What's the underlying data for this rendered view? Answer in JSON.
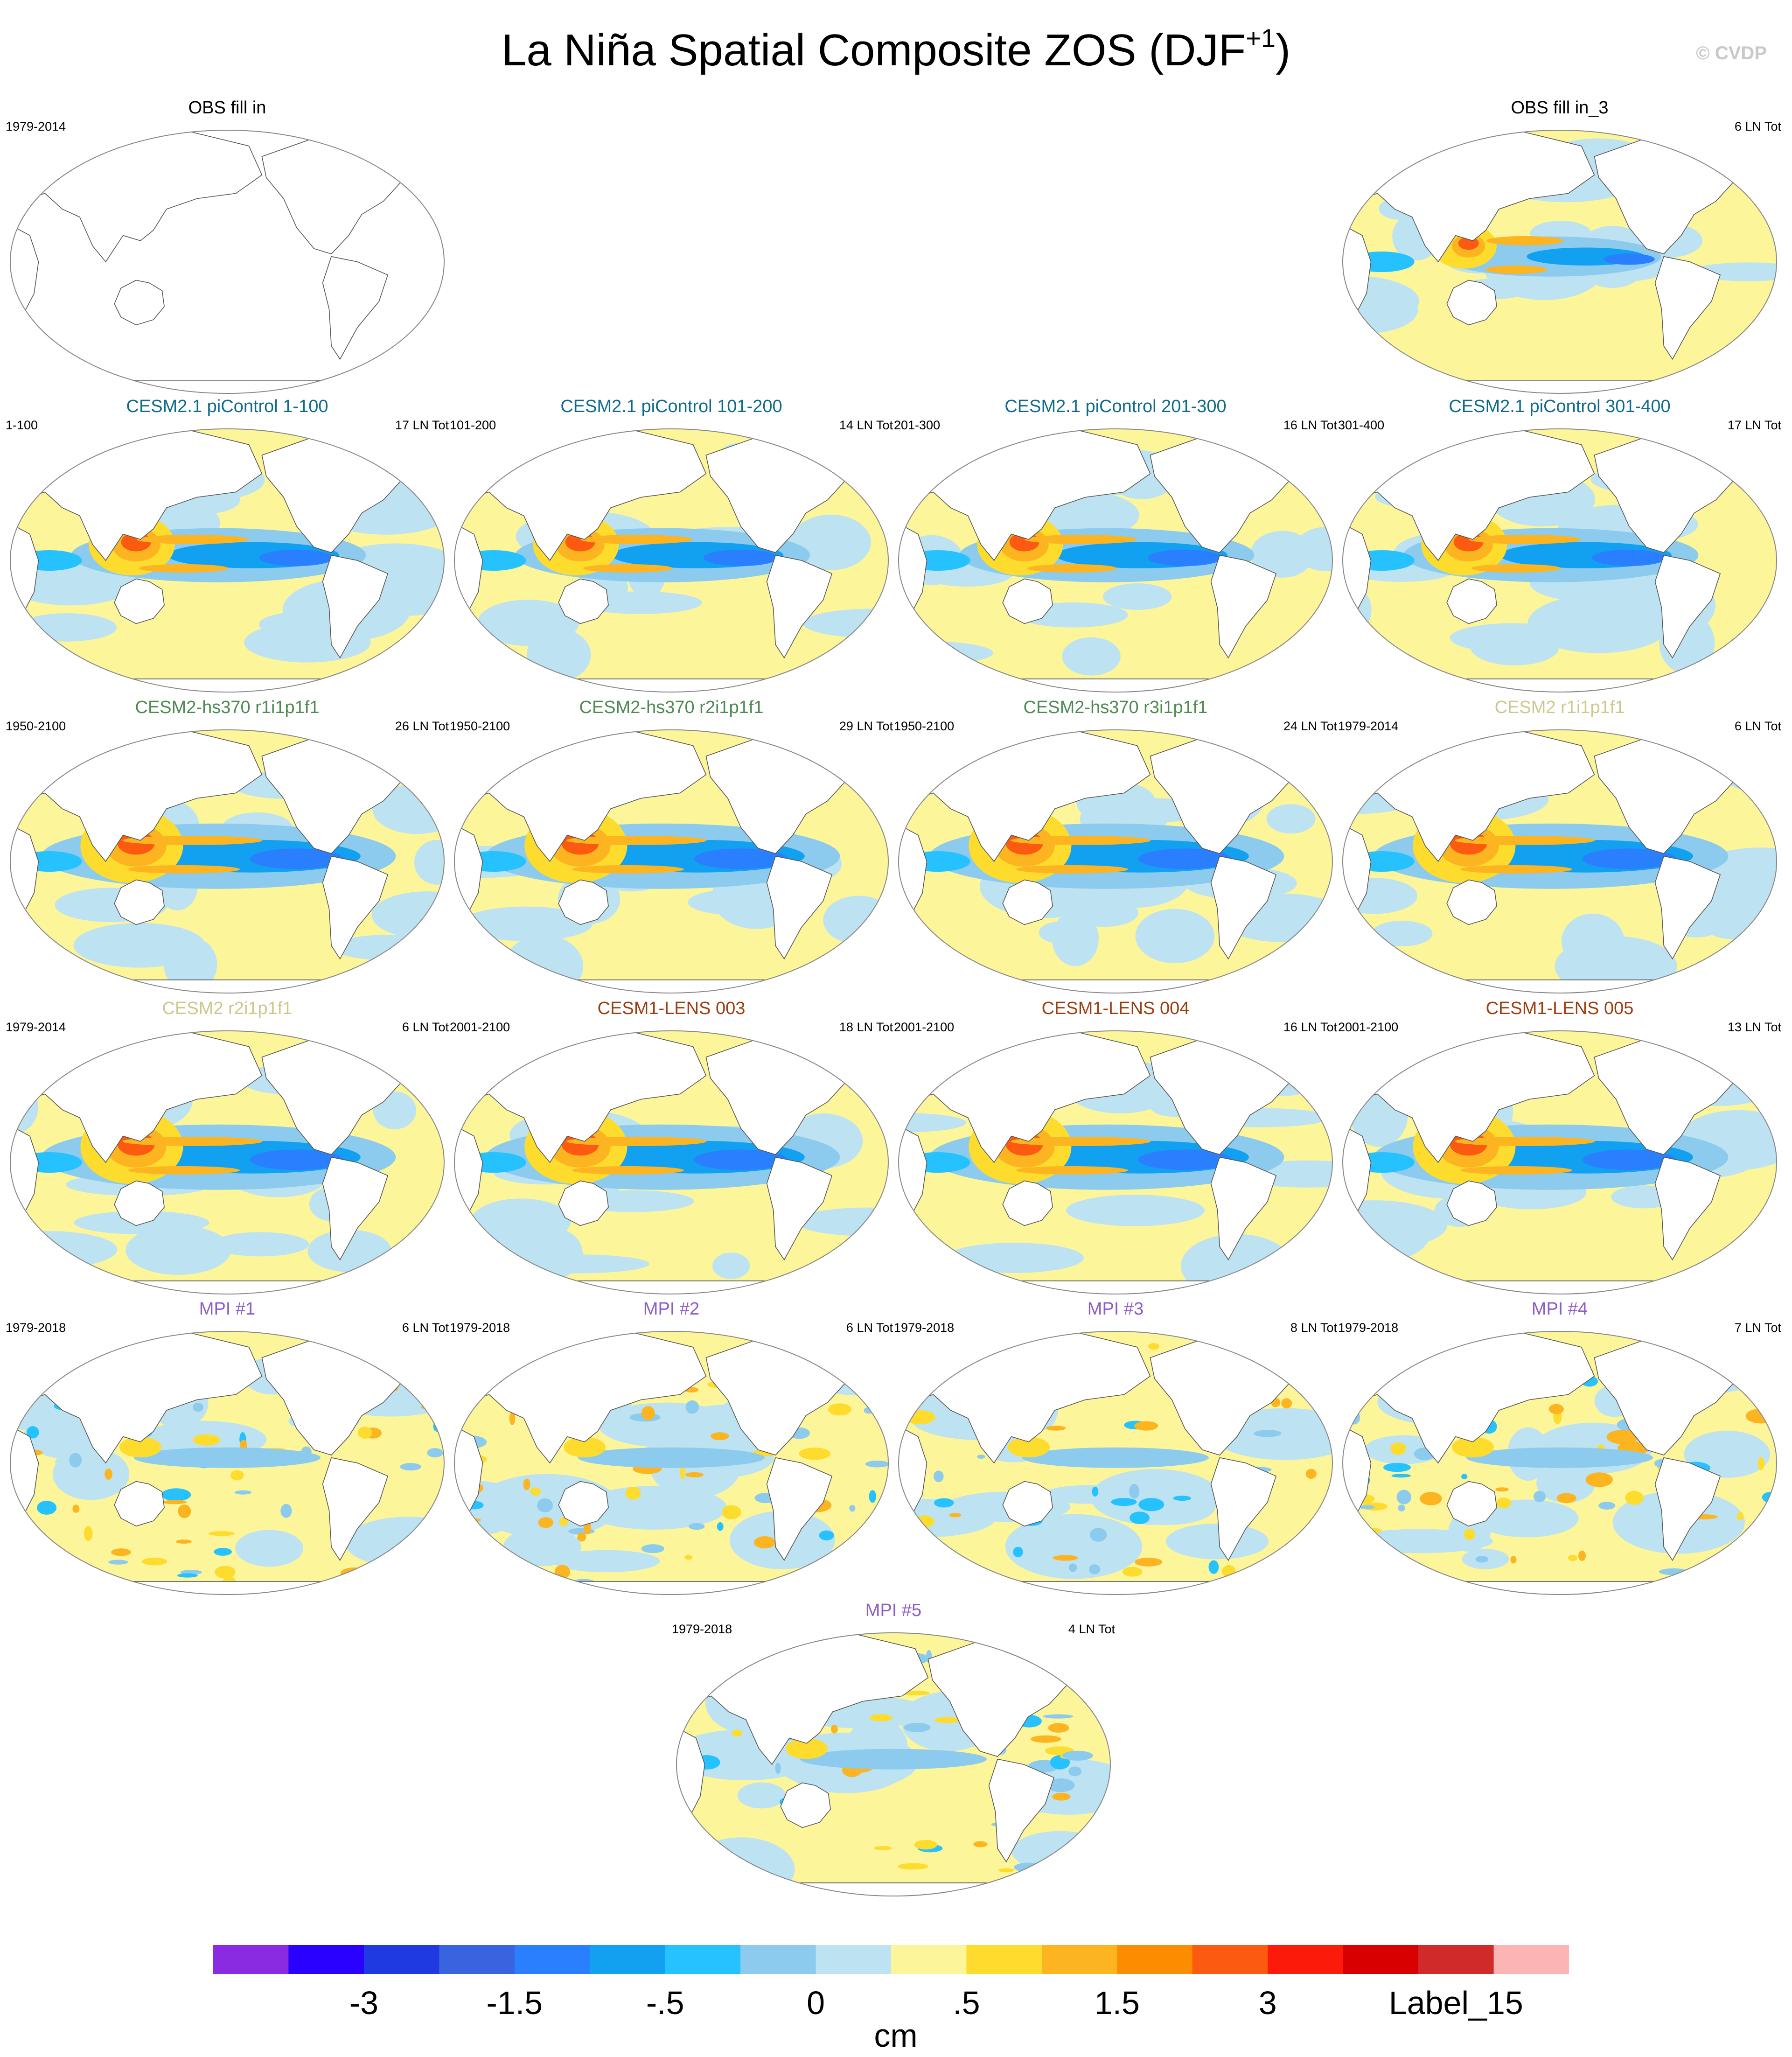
{
  "figure": {
    "title_main": "La Niña Spatial Composite ZOS (DJF",
    "title_sup": "+1",
    "title_close": ")",
    "credit": "© CVDP"
  },
  "panels": [
    {
      "title": "OBS fill in",
      "left": "1979-2014",
      "right": "",
      "color": "#000000",
      "style": "empty"
    },
    {
      "title": "OBS fill in_3",
      "left": "",
      "right": "6 LN Tot",
      "color": "#000000",
      "style": "obs"
    },
    {
      "title": "CESM2.1 piControl 1-100",
      "left": "1-100",
      "right": "17 LN Tot",
      "color": "#0e6b8c",
      "style": "model"
    },
    {
      "title": "CESM2.1 piControl 101-200",
      "left": "101-200",
      "right": "14 LN Tot",
      "color": "#0e6b8c",
      "style": "model"
    },
    {
      "title": "CESM2.1 piControl 201-300",
      "left": "201-300",
      "right": "16 LN Tot",
      "color": "#0e6b8c",
      "style": "model"
    },
    {
      "title": "CESM2.1 piControl 301-400",
      "left": "301-400",
      "right": "17 LN Tot",
      "color": "#0e6b8c",
      "style": "model"
    },
    {
      "title": "CESM2-hs370 r1i1p1f1",
      "left": "1950-2100",
      "right": "26 LN Tot",
      "color": "#4e8a52",
      "style": "strong"
    },
    {
      "title": "CESM2-hs370 r2i1p1f1",
      "left": "1950-2100",
      "right": "29 LN Tot",
      "color": "#4e8a52",
      "style": "strong"
    },
    {
      "title": "CESM2-hs370 r3i1p1f1",
      "left": "1950-2100",
      "right": "24 LN Tot",
      "color": "#4e8a52",
      "style": "strong"
    },
    {
      "title": "CESM2 r1i1p1f1",
      "left": "1979-2014",
      "right": "6 LN Tot",
      "color": "#cfc78a",
      "style": "strong"
    },
    {
      "title": "CESM2 r2i1p1f1",
      "left": "1979-2014",
      "right": "6 LN Tot",
      "color": "#cfc78a",
      "style": "strong"
    },
    {
      "title": "CESM1-LENS 003",
      "left": "2001-2100",
      "right": "18 LN Tot",
      "color": "#9c3d12",
      "style": "strong"
    },
    {
      "title": "CESM1-LENS 004",
      "left": "2001-2100",
      "right": "16 LN Tot",
      "color": "#9c3d12",
      "style": "strong"
    },
    {
      "title": "CESM1-LENS 005",
      "left": "2001-2100",
      "right": "13 LN Tot",
      "color": "#9c3d12",
      "style": "strong"
    },
    {
      "title": "MPI #1",
      "left": "1979-2018",
      "right": "6 LN Tot",
      "color": "#8c5cc7",
      "style": "noisy"
    },
    {
      "title": "MPI #2",
      "left": "1979-2018",
      "right": "6 LN Tot",
      "color": "#8c5cc7",
      "style": "noisy"
    },
    {
      "title": "MPI #3",
      "left": "1979-2018",
      "right": "8 LN Tot",
      "color": "#8c5cc7",
      "style": "noisy"
    },
    {
      "title": "MPI #4",
      "left": "1979-2018",
      "right": "7 LN Tot",
      "color": "#8c5cc7",
      "style": "noisy"
    },
    {
      "title": "MPI #5",
      "left": "1979-2018",
      "right": "4 LN Tot",
      "color": "#8c5cc7",
      "style": "noisy"
    }
  ],
  "colorbar": {
    "colors": [
      "#8a2be2",
      "#2a00ff",
      "#1f3ae0",
      "#3a63e0",
      "#2a7fff",
      "#12a0f0",
      "#26c2ff",
      "#8ccbee",
      "#bde2f2",
      "#fdf59a",
      "#fddc2e",
      "#fcb420",
      "#fc8c00",
      "#fc5a10",
      "#fc1a0a",
      "#d80000",
      "#d02a2a",
      "#fcb4b4"
    ],
    "labels": [
      "-3",
      "-1.5",
      "-.5",
      "0",
      ".5",
      "1.5",
      "3",
      "Label_15"
    ],
    "units": "cm"
  },
  "colors": {
    "land": "#ffffff",
    "coast": "#555555",
    "pos_light": "#fdf59a",
    "neg_light": "#bde2f2"
  }
}
